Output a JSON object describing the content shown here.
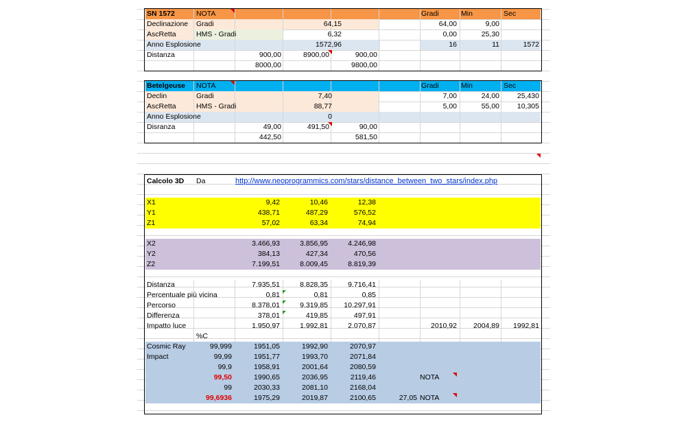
{
  "sn1572": {
    "header": {
      "name": "SN 1572",
      "nota": "NOTA",
      "gradi": "Gradi",
      "min": "Min",
      "sec": "Sec"
    },
    "rows": [
      {
        "label": "Declinazione",
        "unit": "Gradi",
        "val": "64,15",
        "g": "64,00",
        "m": "9,00",
        "s": ""
      },
      {
        "label": "AscRetta",
        "unit": "HMS - Gradi",
        "val": "6,32",
        "g": "0,00",
        "m": "25,30",
        "s": ""
      },
      {
        "label": "Anno Esplosione",
        "unit": "",
        "val": "1572,96",
        "g": "16",
        "m": "11",
        "s": "1572"
      },
      {
        "label": "Distanza",
        "unit": "",
        "c1": "900,00",
        "c2": "8900,00",
        "c3": "900,00"
      },
      {
        "label": "",
        "unit": "",
        "c1": "8000,00",
        "c2": "",
        "c3": "9800,00"
      }
    ]
  },
  "betelgeuse": {
    "header": {
      "name": "Betelgeuse",
      "nota": "NOTA",
      "gradi": "Gradi",
      "min": "Min",
      "sec": "Sec"
    },
    "rows": [
      {
        "label": "Declin",
        "unit": "Gradi",
        "val": "7,40",
        "g": "7,00",
        "m": "24,00",
        "s": "25,430"
      },
      {
        "label": "AscRetta",
        "unit": "HMS - Gradi",
        "val": "88,77",
        "g": "5,00",
        "m": "55,00",
        "s": "10,305"
      },
      {
        "label": "Anno Esplosione",
        "unit": "",
        "val": "0",
        "g": "",
        "m": "",
        "s": ""
      },
      {
        "label": "Disranza",
        "unit": "",
        "c1": "49,00",
        "c2": "491,50",
        "c3": "90,00"
      },
      {
        "label": "",
        "unit": "",
        "c1": "442,50",
        "c2": "",
        "c3": "581,50"
      }
    ]
  },
  "calc3d": {
    "title": "Calcolo 3D",
    "da": "Da",
    "link": "http://www.neoprogrammics.com/stars/distance_between_two_stars/index.php",
    "xyz1": [
      {
        "label": "X1",
        "v": [
          "9,42",
          "10,46",
          "12,38"
        ]
      },
      {
        "label": "Y1",
        "v": [
          "438,71",
          "487,29",
          "576,52"
        ]
      },
      {
        "label": "Z1",
        "v": [
          "57,02",
          "63,34",
          "74,94"
        ]
      }
    ],
    "xyz2": [
      {
        "label": "X2",
        "v": [
          "3.466,93",
          "3.856,95",
          "4.246,98"
        ]
      },
      {
        "label": "Y2",
        "v": [
          "384,13",
          "427,34",
          "470,56"
        ]
      },
      {
        "label": "Z2",
        "v": [
          "7.199,51",
          "8.009,45",
          "8.819,39"
        ]
      }
    ],
    "results": [
      {
        "label": "Distanza",
        "v": [
          "7.935,51",
          "8.828,35",
          "9.716,41"
        ]
      },
      {
        "label": "Percentuale più vicina",
        "v": [
          "0,81",
          "0,81",
          "0,85"
        ]
      },
      {
        "label": "Percorso",
        "v": [
          "8.378,01",
          "9.319,85",
          "10.297,91"
        ]
      },
      {
        "label": "Differenza",
        "v": [
          "378,01",
          "419,85",
          "497,91"
        ]
      },
      {
        "label": "Impatto luce",
        "v": [
          "1.950,97",
          "1.992,81",
          "2.070,87"
        ],
        "extra": [
          "2010,92",
          "2004,89",
          "1992,81"
        ]
      }
    ],
    "pct_label": "%C",
    "cosmic": [
      {
        "label": "Cosmic Ray",
        "pct": "99,999",
        "v": [
          "1951,05",
          "1992,90",
          "2070,97"
        ]
      },
      {
        "label": "Impact",
        "pct": "99,99",
        "v": [
          "1951,77",
          "1993,70",
          "2071,84"
        ]
      },
      {
        "label": "",
        "pct": "99,9",
        "v": [
          "1958,91",
          "2001,64",
          "2080,59"
        ]
      },
      {
        "label": "",
        "pct": "99,50",
        "v": [
          "1990,65",
          "2036,95",
          "2119,46"
        ],
        "nota": "NOTA"
      },
      {
        "label": "",
        "pct": "99",
        "v": [
          "2030,33",
          "2081,10",
          "2168,04"
        ]
      },
      {
        "label": "",
        "pct": "99,6936",
        "v": [
          "1975,29",
          "2019,87",
          "2100,65"
        ],
        "extra": "27,05",
        "nota": "NOTA"
      }
    ]
  },
  "colors": {
    "orange": "#f79646",
    "peach": "#fde9d9",
    "lightblue": "#dce6f1",
    "cyan": "#00b0f0",
    "yellow": "#ffff00",
    "lavender": "#ccc0da",
    "steel": "#b8cce4",
    "green": "#ebf1de"
  }
}
